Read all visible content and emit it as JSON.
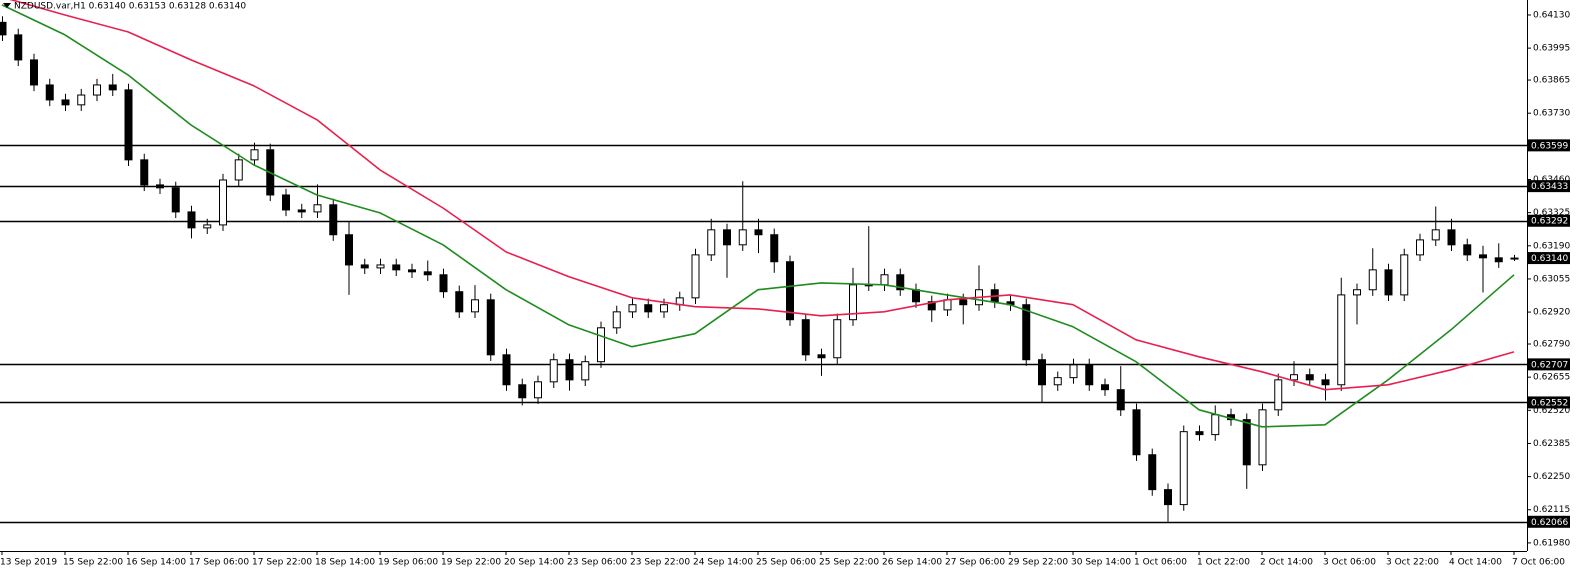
{
  "chart_data": {
    "type": "candlestick",
    "title": "NZDUSD.var,H1  0.63140 0.63153 0.63128 0.63140",
    "categories": [
      "13 Sep 2019",
      "15 Sep 22:00",
      "16 Sep 14:00",
      "17 Sep 06:00",
      "17 Sep 22:00",
      "18 Sep 14:00",
      "19 Sep 06:00",
      "19 Sep 22:00",
      "20 Sep 14:00",
      "23 Sep 06:00",
      "23 Sep 22:00",
      "24 Sep 14:00",
      "25 Sep 06:00",
      "25 Sep 22:00",
      "26 Sep 14:00",
      "27 Sep 06:00",
      "29 Sep 22:00",
      "30 Sep 14:00",
      "1 Oct 06:00",
      "1 Oct 22:00",
      "2 Oct 14:00",
      "3 Oct 06:00",
      "3 Oct 22:00",
      "4 Oct 14:00",
      "7 Oct 06:00"
    ],
    "candles": [
      [
        0.641,
        0.64125,
        0.64024,
        0.64049
      ],
      [
        0.64049,
        0.64074,
        0.63922,
        0.63947
      ],
      [
        0.63947,
        0.63972,
        0.6382,
        0.63845
      ],
      [
        0.63845,
        0.6387,
        0.63759,
        0.63784
      ],
      [
        0.63784,
        0.63809,
        0.63739,
        0.63764
      ],
      [
        0.63764,
        0.63829,
        0.63739,
        0.63804
      ],
      [
        0.63804,
        0.6387,
        0.63779,
        0.63845
      ],
      [
        0.63845,
        0.6389,
        0.638,
        0.63825
      ],
      [
        0.63825,
        0.6385,
        0.63515,
        0.6354
      ],
      [
        0.6354,
        0.63565,
        0.63413,
        0.63438
      ],
      [
        0.63438,
        0.63463,
        0.63401,
        0.63426
      ],
      [
        0.63426,
        0.63451,
        0.63303,
        0.63328
      ],
      [
        0.63328,
        0.63353,
        0.6322,
        0.63263
      ],
      [
        0.63263,
        0.633,
        0.63238,
        0.63275
      ],
      [
        0.63275,
        0.63483,
        0.6325,
        0.63458
      ],
      [
        0.63458,
        0.63565,
        0.63433,
        0.6354
      ],
      [
        0.6354,
        0.6361,
        0.63515,
        0.63581
      ],
      [
        0.63581,
        0.63606,
        0.63372,
        0.63397
      ],
      [
        0.63397,
        0.63422,
        0.63311,
        0.63336
      ],
      [
        0.63336,
        0.63361,
        0.63303,
        0.63328
      ],
      [
        0.63328,
        0.6344,
        0.63303,
        0.63357
      ],
      [
        0.63357,
        0.63382,
        0.6321,
        0.63235
      ],
      [
        0.63235,
        0.6329,
        0.6299,
        0.63112
      ],
      [
        0.63112,
        0.63137,
        0.63075,
        0.631
      ],
      [
        0.631,
        0.63137,
        0.63075,
        0.63112
      ],
      [
        0.63112,
        0.63137,
        0.63067,
        0.63092
      ],
      [
        0.63092,
        0.63117,
        0.63059,
        0.63084
      ],
      [
        0.63084,
        0.6313,
        0.63047,
        0.63072
      ],
      [
        0.63072,
        0.63097,
        0.62978,
        0.63003
      ],
      [
        0.63003,
        0.63028,
        0.62896,
        0.62921
      ],
      [
        0.62921,
        0.6303,
        0.62896,
        0.6297
      ],
      [
        0.6297,
        0.62995,
        0.62721,
        0.62746
      ],
      [
        0.62746,
        0.62771,
        0.62599,
        0.62624
      ],
      [
        0.62624,
        0.62649,
        0.6254,
        0.62571
      ],
      [
        0.62571,
        0.62661,
        0.62546,
        0.62636
      ],
      [
        0.62636,
        0.62751,
        0.62611,
        0.62726
      ],
      [
        0.62726,
        0.62751,
        0.626,
        0.62644
      ],
      [
        0.62644,
        0.62743,
        0.62619,
        0.62718
      ],
      [
        0.62718,
        0.62881,
        0.62693,
        0.62856
      ],
      [
        0.62856,
        0.62946,
        0.62831,
        0.62921
      ],
      [
        0.62921,
        0.62975,
        0.62896,
        0.6295
      ],
      [
        0.6295,
        0.62975,
        0.62896,
        0.62921
      ],
      [
        0.62921,
        0.62975,
        0.62896,
        0.6295
      ],
      [
        0.6295,
        0.63003,
        0.62925,
        0.62978
      ],
      [
        0.62978,
        0.63178,
        0.62953,
        0.63153
      ],
      [
        0.63153,
        0.633,
        0.63128,
        0.63255
      ],
      [
        0.63255,
        0.6328,
        0.6306,
        0.63194
      ],
      [
        0.63194,
        0.63453,
        0.63169,
        0.63255
      ],
      [
        0.63255,
        0.633,
        0.6316,
        0.63235
      ],
      [
        0.63235,
        0.6326,
        0.6308,
        0.63125
      ],
      [
        0.63125,
        0.6315,
        0.62864,
        0.62889
      ],
      [
        0.62889,
        0.62914,
        0.62721,
        0.62746
      ],
      [
        0.62746,
        0.62771,
        0.6266,
        0.62734
      ],
      [
        0.62734,
        0.62914,
        0.62709,
        0.62889
      ],
      [
        0.62889,
        0.631,
        0.62864,
        0.63031
      ],
      [
        0.63031,
        0.6327,
        0.63006,
        0.63031
      ],
      [
        0.63031,
        0.63097,
        0.63006,
        0.63072
      ],
      [
        0.63072,
        0.63097,
        0.62986,
        0.63011
      ],
      [
        0.63011,
        0.63036,
        0.62937,
        0.62962
      ],
      [
        0.62962,
        0.62987,
        0.6288,
        0.62929
      ],
      [
        0.62929,
        0.62995,
        0.62904,
        0.6297
      ],
      [
        0.6297,
        0.62995,
        0.6287,
        0.6295
      ],
      [
        0.6295,
        0.6311,
        0.62925,
        0.63011
      ],
      [
        0.63011,
        0.63036,
        0.62937,
        0.62962
      ],
      [
        0.62962,
        0.62987,
        0.62925,
        0.6295
      ],
      [
        0.6295,
        0.62975,
        0.62701,
        0.62726
      ],
      [
        0.62726,
        0.62751,
        0.6255,
        0.62624
      ],
      [
        0.62624,
        0.62678,
        0.62599,
        0.62653
      ],
      [
        0.62653,
        0.6273,
        0.62628,
        0.62705
      ],
      [
        0.62705,
        0.6273,
        0.62599,
        0.62624
      ],
      [
        0.62624,
        0.62649,
        0.62579,
        0.62604
      ],
      [
        0.62604,
        0.627,
        0.62497,
        0.62522
      ],
      [
        0.62522,
        0.62547,
        0.62314,
        0.62339
      ],
      [
        0.62339,
        0.62364,
        0.62172,
        0.62197
      ],
      [
        0.62197,
        0.62222,
        0.62066,
        0.62136
      ],
      [
        0.62136,
        0.62458,
        0.62111,
        0.62433
      ],
      [
        0.62433,
        0.62458,
        0.62396,
        0.62421
      ],
      [
        0.62421,
        0.6254,
        0.62396,
        0.62502
      ],
      [
        0.62502,
        0.62527,
        0.62457,
        0.62482
      ],
      [
        0.62482,
        0.62507,
        0.622,
        0.62298
      ],
      [
        0.62298,
        0.62547,
        0.62273,
        0.62522
      ],
      [
        0.62522,
        0.62669,
        0.62497,
        0.62644
      ],
      [
        0.62644,
        0.6272,
        0.62619,
        0.62665
      ],
      [
        0.62665,
        0.6269,
        0.62619,
        0.62644
      ],
      [
        0.62644,
        0.62669,
        0.6256,
        0.62624
      ],
      [
        0.62624,
        0.6306,
        0.62599,
        0.6299
      ],
      [
        0.6299,
        0.63036,
        0.6287,
        0.63011
      ],
      [
        0.63011,
        0.6318,
        0.62986,
        0.63092
      ],
      [
        0.63092,
        0.63117,
        0.62965,
        0.6299
      ],
      [
        0.6299,
        0.63178,
        0.62965,
        0.63153
      ],
      [
        0.63153,
        0.63239,
        0.63128,
        0.63214
      ],
      [
        0.63214,
        0.6335,
        0.63189,
        0.63255
      ],
      [
        0.63255,
        0.633,
        0.63169,
        0.63194
      ],
      [
        0.63194,
        0.63219,
        0.63128,
        0.63153
      ],
      [
        0.63153,
        0.6319,
        0.63,
        0.63141
      ],
      [
        0.63141,
        0.632,
        0.631,
        0.63125
      ],
      [
        0.6314,
        0.63153,
        0.63128,
        0.6314
      ]
    ],
    "up_color": "#ffffff",
    "down_color": "#000000",
    "series": [
      {
        "color": "#1e8c1e",
        "values": [
          0.64171,
          0.64049,
          0.63886,
          0.63682,
          0.63519,
          0.63397,
          0.63324,
          0.63194,
          0.63011,
          0.62868,
          0.62779,
          0.62832,
          0.63011,
          0.63039,
          0.63031,
          0.6299,
          0.6295,
          0.6286,
          0.62718,
          0.62522,
          0.62453,
          0.62461,
          0.62644,
          0.62848,
          0.63072
        ]
      },
      {
        "color": "#e8204e",
        "values": [
          0.64203,
          0.6413,
          0.64061,
          0.63947,
          0.63841,
          0.63703,
          0.63499,
          0.63344,
          0.63165,
          0.63064,
          0.62978,
          0.62942,
          0.62933,
          0.62905,
          0.62921,
          0.6297,
          0.6299,
          0.6295,
          0.62807,
          0.62738,
          0.62677,
          0.62604,
          0.62624,
          0.62685,
          0.62758
        ]
      }
    ],
    "levels": [
      0.63599,
      0.63433,
      0.63292,
      0.62707,
      0.62552,
      0.62066
    ],
    "level_color": "#000000",
    "bid": {
      "value": 0.6314,
      "label": "0.63140"
    },
    "ylim": [
      0.61947,
      0.64191
    ],
    "yticks": [
      {
        "value": 0.6413,
        "label": "0.64130"
      },
      0.63995,
      0.63865,
      {
        "value": 0.6373,
        "label": "0.63730"
      },
      {
        "value": 0.6346,
        "label": "0.63460"
      },
      0.63325,
      {
        "value": 0.6319,
        "label": "0.63190"
      },
      0.63055,
      {
        "value": 0.6292,
        "label": "0.62920"
      },
      {
        "value": 0.6279,
        "label": "0.62790"
      },
      0.62655,
      {
        "value": 0.6252,
        "label": "0.62520"
      },
      0.62385,
      {
        "value": 0.6225,
        "label": "0.62250"
      },
      0.62115,
      {
        "value": 0.6198,
        "label": "0.61980"
      }
    ],
    "grid": false
  }
}
